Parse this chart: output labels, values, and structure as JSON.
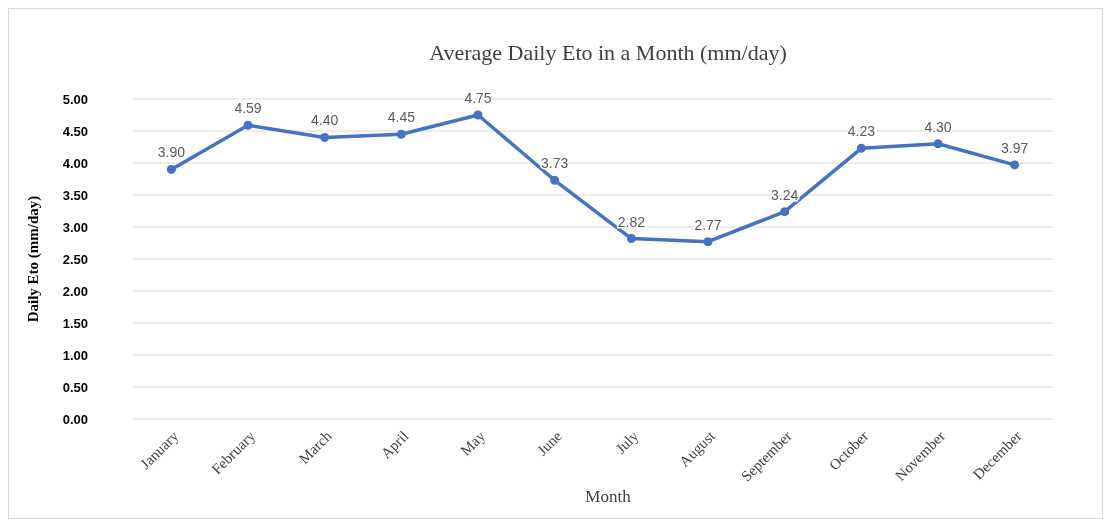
{
  "chart_data": {
    "type": "line",
    "title": "Average Daily Eto in a Month (mm/day)",
    "xlabel": "Month",
    "ylabel": "Daily Eto (mm/day)",
    "categories": [
      "January",
      "February",
      "March",
      "April",
      "May",
      "June",
      "July",
      "August",
      "September",
      "October",
      "November",
      "December"
    ],
    "series": [
      {
        "color": "#4472c4",
        "values": [
          3.9,
          4.59,
          4.4,
          4.45,
          4.75,
          3.73,
          2.82,
          2.77,
          3.24,
          4.23,
          4.3,
          3.97
        ],
        "value_labels": [
          "3.90",
          "4.59",
          "4.40",
          "4.45",
          "4.75",
          "3.73",
          "2.82",
          "2.77",
          "3.24",
          "4.23",
          "4.30",
          "3.97"
        ]
      }
    ],
    "ylim": [
      0,
      5
    ],
    "yticks": [
      {
        "value": 0,
        "label": "0.00"
      },
      {
        "value": 0.5,
        "label": "0.50"
      },
      {
        "value": 1,
        "label": "1.00"
      },
      {
        "value": 1.5,
        "label": "1.50"
      },
      {
        "value": 2,
        "label": "2.00"
      },
      {
        "value": 2.5,
        "label": "2.50"
      },
      {
        "value": 3,
        "label": "3.00"
      },
      {
        "value": 3.5,
        "label": "3.50"
      },
      {
        "value": 4,
        "label": "4.00"
      },
      {
        "value": 4.5,
        "label": "4.50"
      },
      {
        "value": 5,
        "label": "5.00"
      }
    ],
    "grid": "y",
    "marker": "circle"
  }
}
